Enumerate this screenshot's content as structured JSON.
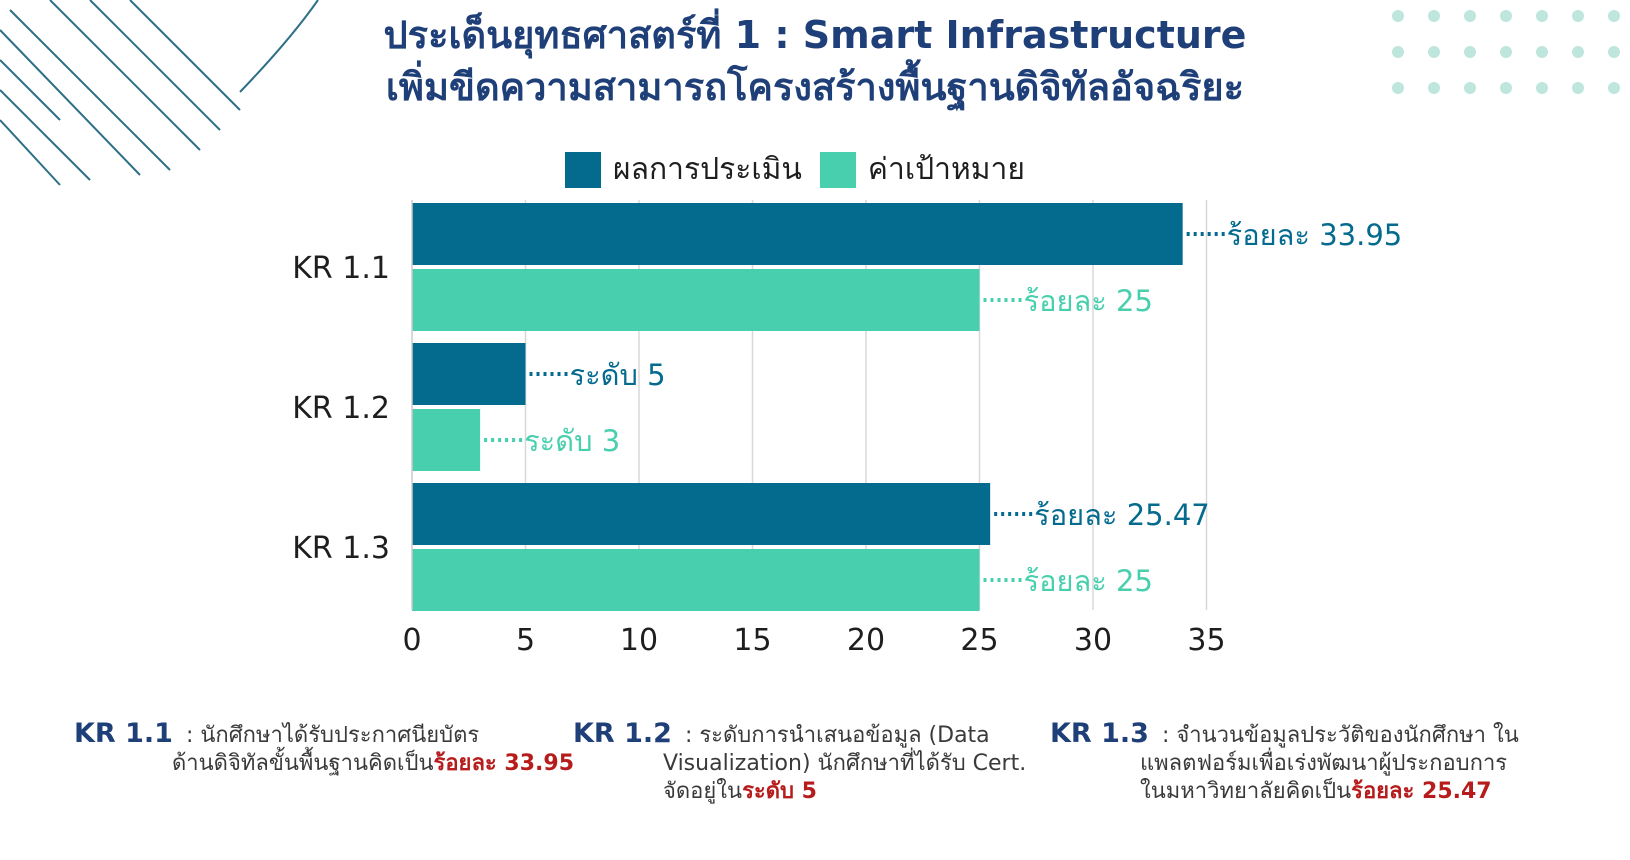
{
  "title": {
    "line1": "ประเด็นยุทธศาสตร์ที่ 1 : Smart Infrastructure",
    "line2": "เพิ่มขีดความสามารถโครงสร้างพื้นฐานดิจิทัลอัจฉริยะ"
  },
  "colors": {
    "actual": "#046b8f",
    "target": "#48cfae",
    "title": "#1f3f78",
    "highlight": "#b71c1c"
  },
  "chart_data": {
    "type": "bar",
    "orientation": "horizontal",
    "categories": [
      "KR 1.1",
      "KR 1.2",
      "KR 1.3"
    ],
    "series": [
      {
        "name": "ผลการประเมิน",
        "values": [
          33.95,
          5,
          25.47
        ],
        "labels": [
          "ร้อยละ 33.95",
          "ระดับ 5",
          "ร้อยละ 25.47"
        ]
      },
      {
        "name": "ค่าเป้าหมาย",
        "values": [
          25,
          3,
          25
        ],
        "labels": [
          "ร้อยละ 25",
          "ระดับ 3",
          "ร้อยละ 25"
        ]
      }
    ],
    "xlim": [
      0,
      35
    ],
    "xticks": [
      0,
      5,
      10,
      15,
      20,
      25,
      30,
      35
    ],
    "grid": true,
    "legend_position": "top"
  },
  "footnotes": [
    {
      "kr": "KR 1.1",
      "text1": ": นักศึกษาได้รับประกาศนียบัตร",
      "text2": "ด้านดิจิทัลขั้นพื้นฐานคิดเป็น",
      "highlight": "ร้อยละ 33.95"
    },
    {
      "kr": "KR 1.2",
      "text1": ": ระดับการนำเสนอข้อมูล (Data",
      "text2": "Visualization) นักศึกษาที่ได้รับ Cert.",
      "text3": "จัดอยู่ใน",
      "highlight": "ระดับ 5"
    },
    {
      "kr": "KR 1.3",
      "text1": ": จำนวนข้อมูลประวัติของนักศึกษา ใน",
      "text2": "แพลตฟอร์มเพื่อเร่งพัฒนาผู้ประกอบการ",
      "text3": "ในมหาวิทยาลัยคิดเป็น",
      "highlight": "ร้อยละ 25.47"
    }
  ]
}
